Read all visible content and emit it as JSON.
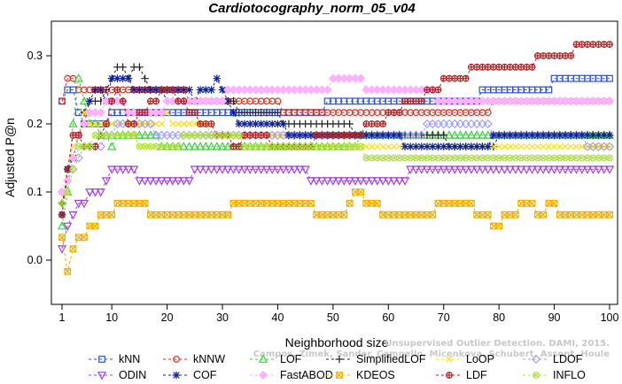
{
  "chart_data": {
    "type": "line",
    "title": "Cardiotocography_norm_05_v04",
    "xlabel": "Neighborhood size",
    "ylabel": "Adjusted P@n",
    "xlim": [
      1,
      100
    ],
    "ylim": [
      -0.06,
      0.33
    ],
    "xticks": [
      1,
      10,
      20,
      30,
      40,
      50,
      60,
      70,
      80,
      90,
      100
    ],
    "yticks": [
      0.0,
      0.1,
      0.2,
      0.3
    ],
    "ytick_labels": [
      "0.0",
      "0.1",
      "0.2",
      "0.3"
    ],
    "grid": false,
    "legend_position": "bottom",
    "watermark": [
      "Campos, Zimek, Sander, Campello, Micenkova, Schubert, Assent, Houle",
      "Unsupervised Outlier Detection. DAMI, 2015."
    ],
    "series": [
      {
        "name": "kNN",
        "color": "#3050e0",
        "marker": "square",
        "anchors": [
          [
            1,
            0.24
          ],
          [
            2,
            0.25
          ],
          [
            3,
            0.25
          ],
          [
            4,
            0.22
          ],
          [
            5,
            0.2
          ],
          [
            8,
            0.2
          ],
          [
            9,
            0.2
          ],
          [
            10,
            0.21
          ],
          [
            15,
            0.21
          ],
          [
            30,
            0.21
          ],
          [
            45,
            0.21
          ],
          [
            48,
            0.22
          ],
          [
            50,
            0.23
          ],
          [
            52,
            0.24
          ],
          [
            76,
            0.24
          ],
          [
            80,
            0.25
          ],
          [
            88,
            0.25
          ],
          [
            90,
            0.26
          ],
          [
            98,
            0.26
          ],
          [
            100,
            0.27
          ]
        ]
      },
      {
        "name": "kNNW",
        "color": "#e03020",
        "marker": "circle",
        "anchors": [
          [
            1,
            0.24
          ],
          [
            2,
            0.27
          ],
          [
            3,
            0.26
          ],
          [
            6,
            0.25
          ],
          [
            10,
            0.25
          ],
          [
            14,
            0.25
          ],
          [
            25,
            0.24
          ],
          [
            35,
            0.23
          ],
          [
            45,
            0.22
          ],
          [
            55,
            0.22
          ],
          [
            65,
            0.22
          ],
          [
            75,
            0.22
          ],
          [
            82,
            0.23
          ],
          [
            90,
            0.24
          ],
          [
            100,
            0.24
          ]
        ]
      },
      {
        "name": "LOF",
        "color": "#40d040",
        "marker": "triangle-up",
        "anchors": [
          [
            1,
            0.05
          ],
          [
            2,
            0.1
          ],
          [
            3,
            0.2
          ],
          [
            4,
            0.27
          ],
          [
            6,
            0.2
          ],
          [
            10,
            0.17
          ],
          [
            14,
            0.19
          ],
          [
            20,
            0.17
          ],
          [
            30,
            0.16
          ],
          [
            40,
            0.17
          ],
          [
            50,
            0.17
          ],
          [
            60,
            0.18
          ],
          [
            70,
            0.19
          ],
          [
            80,
            0.19
          ],
          [
            90,
            0.19
          ],
          [
            100,
            0.19
          ]
        ]
      },
      {
        "name": "SimplifiedLOF",
        "color": "#202020",
        "marker": "plus",
        "anchors": [
          [
            1,
            0.09
          ],
          [
            2,
            0.12
          ],
          [
            3,
            0.15
          ],
          [
            5,
            0.22
          ],
          [
            8,
            0.24
          ],
          [
            11,
            0.29
          ],
          [
            13,
            0.26
          ],
          [
            15,
            0.29
          ],
          [
            17,
            0.25
          ],
          [
            20,
            0.24
          ],
          [
            25,
            0.24
          ],
          [
            35,
            0.22
          ],
          [
            45,
            0.2
          ],
          [
            55,
            0.19
          ],
          [
            65,
            0.18
          ],
          [
            75,
            0.17
          ],
          [
            85,
            0.18
          ],
          [
            100,
            0.18
          ]
        ]
      },
      {
        "name": "LoOP",
        "color": "#ffe020",
        "marker": "x",
        "anchors": [
          [
            1,
            0.1
          ],
          [
            2,
            0.13
          ],
          [
            3,
            0.17
          ],
          [
            5,
            0.21
          ],
          [
            9,
            0.2
          ],
          [
            14,
            0.19
          ],
          [
            20,
            0.21
          ],
          [
            28,
            0.19
          ],
          [
            35,
            0.18
          ],
          [
            45,
            0.19
          ],
          [
            55,
            0.17
          ],
          [
            65,
            0.16
          ],
          [
            75,
            0.16
          ],
          [
            85,
            0.16
          ],
          [
            100,
            0.16
          ]
        ]
      },
      {
        "name": "LDOF",
        "color": "#a0a0ff",
        "marker": "diamond",
        "anchors": [
          [
            1,
            0.1
          ],
          [
            2,
            0.11
          ],
          [
            3,
            0.13
          ],
          [
            5,
            0.17
          ],
          [
            8,
            0.17
          ],
          [
            12,
            0.2
          ],
          [
            18,
            0.19
          ],
          [
            25,
            0.18
          ],
          [
            35,
            0.18
          ],
          [
            45,
            0.18
          ],
          [
            55,
            0.18
          ],
          [
            65,
            0.19
          ],
          [
            72,
            0.2
          ],
          [
            80,
            0.19
          ],
          [
            90,
            0.18
          ],
          [
            100,
            0.17
          ]
        ]
      },
      {
        "name": "ODIN",
        "color": "#a040e0",
        "marker": "triangle-down",
        "anchors": [
          [
            1,
            0.02
          ],
          [
            2,
            0.05
          ],
          [
            3,
            0.07
          ],
          [
            5,
            0.09
          ],
          [
            8,
            0.1
          ],
          [
            10,
            0.13
          ],
          [
            12,
            0.13
          ],
          [
            16,
            0.12
          ],
          [
            20,
            0.12
          ],
          [
            30,
            0.13
          ],
          [
            37,
            0.14
          ],
          [
            42,
            0.13
          ],
          [
            48,
            0.12
          ],
          [
            50,
            0.11
          ],
          [
            52,
            0.11
          ],
          [
            55,
            0.12
          ],
          [
            60,
            0.12
          ],
          [
            68,
            0.13
          ],
          [
            75,
            0.13
          ],
          [
            80,
            0.14
          ],
          [
            90,
            0.14
          ],
          [
            100,
            0.14
          ]
        ]
      },
      {
        "name": "COF",
        "color": "#102090",
        "marker": "asterisk",
        "anchors": [
          [
            1,
            0.07
          ],
          [
            2,
            0.13
          ],
          [
            3,
            0.15
          ],
          [
            5,
            0.2
          ],
          [
            7,
            0.25
          ],
          [
            9,
            0.24
          ],
          [
            10,
            0.26
          ],
          [
            13,
            0.26
          ],
          [
            16,
            0.25
          ],
          [
            20,
            0.25
          ],
          [
            25,
            0.24
          ],
          [
            29,
            0.26
          ],
          [
            32,
            0.21
          ],
          [
            37,
            0.2
          ],
          [
            42,
            0.19
          ],
          [
            50,
            0.19
          ],
          [
            55,
            0.18
          ],
          [
            60,
            0.18
          ],
          [
            70,
            0.16
          ],
          [
            75,
            0.16
          ],
          [
            80,
            0.18
          ],
          [
            90,
            0.19
          ],
          [
            100,
            0.18
          ]
        ]
      },
      {
        "name": "FastABOD",
        "color": "#ffb0ff",
        "marker": "diamond-filled",
        "anchors": [
          [
            1,
            0.1
          ],
          [
            2,
            0.12
          ],
          [
            3,
            0.15
          ],
          [
            4,
            0.18
          ],
          [
            6,
            0.21
          ],
          [
            10,
            0.23
          ],
          [
            15,
            0.22
          ],
          [
            25,
            0.23
          ],
          [
            35,
            0.25
          ],
          [
            40,
            0.25
          ],
          [
            45,
            0.25
          ],
          [
            50,
            0.26
          ],
          [
            55,
            0.26
          ],
          [
            60,
            0.25
          ],
          [
            70,
            0.24
          ],
          [
            75,
            0.23
          ],
          [
            85,
            0.23
          ],
          [
            100,
            0.23
          ]
        ]
      },
      {
        "name": "KDEOS",
        "color": "#f0b000",
        "marker": "square-x",
        "anchors": [
          [
            1,
            0.03
          ],
          [
            2,
            -0.02
          ],
          [
            3,
            0.01
          ],
          [
            4,
            0.03
          ],
          [
            5,
            0.04
          ],
          [
            7,
            0.05
          ],
          [
            8,
            0.06
          ],
          [
            10,
            0.07
          ],
          [
            12,
            0.08
          ],
          [
            15,
            0.08
          ],
          [
            17,
            0.07
          ],
          [
            20,
            0.06
          ],
          [
            22,
            0.06
          ],
          [
            25,
            0.07
          ],
          [
            28,
            0.06
          ],
          [
            30,
            0.07
          ],
          [
            33,
            0.08
          ],
          [
            36,
            0.09
          ],
          [
            40,
            0.08
          ],
          [
            45,
            0.08
          ],
          [
            48,
            0.07
          ],
          [
            50,
            0.06
          ],
          [
            52,
            0.07
          ],
          [
            54,
            0.1
          ],
          [
            56,
            0.09
          ],
          [
            58,
            0.08
          ],
          [
            60,
            0.06
          ],
          [
            62,
            0.07
          ],
          [
            65,
            0.06
          ],
          [
            68,
            0.07
          ],
          [
            70,
            0.08
          ],
          [
            72,
            0.09
          ],
          [
            75,
            0.08
          ],
          [
            78,
            0.06
          ],
          [
            80,
            0.05
          ],
          [
            82,
            0.07
          ],
          [
            85,
            0.08
          ],
          [
            88,
            0.07
          ],
          [
            90,
            0.08
          ],
          [
            92,
            0.06
          ],
          [
            95,
            0.07
          ],
          [
            98,
            0.06
          ],
          [
            100,
            0.06
          ]
        ]
      },
      {
        "name": "LDF",
        "color": "#b02020",
        "marker": "circle-plus",
        "anchors": [
          [
            1,
            0.07
          ],
          [
            2,
            0.13
          ],
          [
            3,
            0.19
          ],
          [
            5,
            0.16
          ],
          [
            7,
            0.16
          ],
          [
            9,
            0.2
          ],
          [
            11,
            0.25
          ],
          [
            13,
            0.2
          ],
          [
            15,
            0.21
          ],
          [
            20,
            0.25
          ],
          [
            25,
            0.21
          ],
          [
            30,
            0.18
          ],
          [
            32,
            0.17
          ],
          [
            36,
            0.18
          ],
          [
            40,
            0.17
          ],
          [
            44,
            0.16
          ],
          [
            48,
            0.18
          ],
          [
            55,
            0.19
          ],
          [
            60,
            0.21
          ],
          [
            68,
            0.25
          ],
          [
            72,
            0.27
          ],
          [
            77,
            0.28
          ],
          [
            82,
            0.29
          ],
          [
            86,
            0.29
          ],
          [
            90,
            0.3
          ],
          [
            94,
            0.31
          ],
          [
            97,
            0.32
          ],
          [
            100,
            0.31
          ]
        ]
      },
      {
        "name": "INFLO",
        "color": "#b0e040",
        "marker": "circle-x",
        "anchors": [
          [
            1,
            0.08
          ],
          [
            2,
            0.1
          ],
          [
            3,
            0.13
          ],
          [
            4,
            0.16
          ],
          [
            6,
            0.17
          ],
          [
            8,
            0.19
          ],
          [
            12,
            0.18
          ],
          [
            16,
            0.17
          ],
          [
            20,
            0.17
          ],
          [
            25,
            0.18
          ],
          [
            30,
            0.19
          ],
          [
            35,
            0.17
          ],
          [
            40,
            0.16
          ],
          [
            45,
            0.16
          ],
          [
            50,
            0.17
          ],
          [
            55,
            0.16
          ],
          [
            60,
            0.15
          ],
          [
            70,
            0.15
          ],
          [
            80,
            0.15
          ],
          [
            90,
            0.15
          ],
          [
            100,
            0.15
          ]
        ]
      }
    ]
  }
}
